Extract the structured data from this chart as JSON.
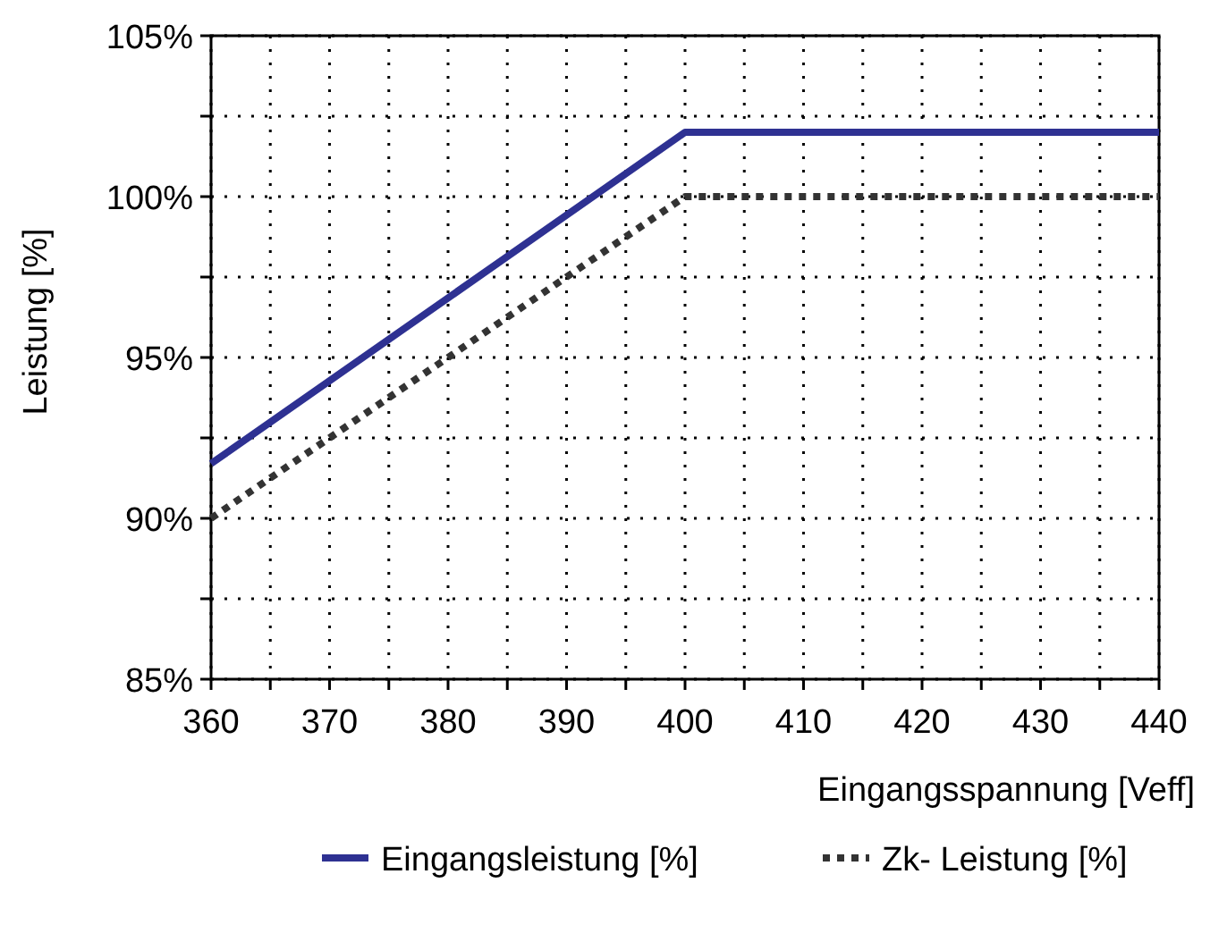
{
  "chart_data": {
    "type": "line",
    "xlabel": "Eingangsspannung [Veff]",
    "ylabel": "Leistung [%]",
    "x": [
      360,
      400,
      440
    ],
    "xlim": [
      360,
      440
    ],
    "xticks": [
      360,
      {
        "value": 365,
        "label": null
      },
      370,
      {
        "value": 375,
        "label": null
      },
      380,
      {
        "value": 385,
        "label": null
      },
      390,
      {
        "value": 395,
        "label": null
      },
      400,
      {
        "value": 405,
        "label": null
      },
      410,
      {
        "value": 415,
        "label": null
      },
      420,
      {
        "value": 425,
        "label": null
      },
      430,
      {
        "value": 435,
        "label": null
      },
      440
    ],
    "ylim": [
      85,
      105
    ],
    "yticks": [
      {
        "value": 85,
        "label": "85%"
      },
      {
        "value": 87.5,
        "label": null
      },
      {
        "value": 90,
        "label": "90%"
      },
      {
        "value": 92.5,
        "label": null
      },
      {
        "value": 95,
        "label": "95%"
      },
      {
        "value": 97.5,
        "label": null
      },
      {
        "value": 100,
        "label": "100%"
      },
      {
        "value": 102.5,
        "label": null
      },
      {
        "value": 105,
        "label": "105%"
      }
    ],
    "grid": true,
    "legend": "bottom",
    "marker": "none",
    "series": [
      {
        "name": "Eingangsleistung [%]",
        "color": "#2e3192",
        "values": [
          91.7,
          102,
          102
        ],
        "line_style": "solid"
      },
      {
        "name": "Zk- Leistung [%]",
        "color": "#333333",
        "values": [
          90,
          100,
          100
        ],
        "line_style": "dotted"
      }
    ]
  }
}
